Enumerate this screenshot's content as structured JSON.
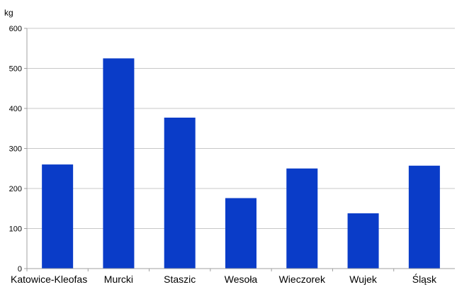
{
  "chart_data": {
    "type": "bar",
    "unit_label": "kg",
    "categories": [
      "Katowice-Kleofas",
      "Murcki",
      "Staszic",
      "Wesoła",
      "Wieczorek",
      "Wujek",
      "Śląsk"
    ],
    "values": [
      260,
      525,
      377,
      176,
      250,
      138,
      257
    ],
    "ylim": [
      0,
      600
    ],
    "yticks": [
      0,
      100,
      200,
      300,
      400,
      500,
      600
    ],
    "grid": true,
    "bar_color": "#0a3cc8"
  }
}
